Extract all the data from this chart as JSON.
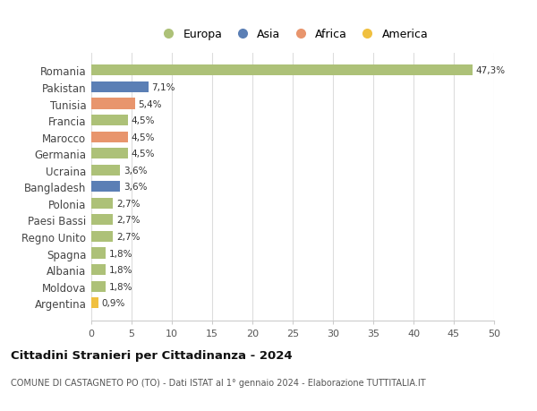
{
  "categories": [
    "Romania",
    "Pakistan",
    "Tunisia",
    "Francia",
    "Marocco",
    "Germania",
    "Ucraina",
    "Bangladesh",
    "Polonia",
    "Paesi Bassi",
    "Regno Unito",
    "Spagna",
    "Albania",
    "Moldova",
    "Argentina"
  ],
  "values": [
    47.3,
    7.1,
    5.4,
    4.5,
    4.5,
    4.5,
    3.6,
    3.6,
    2.7,
    2.7,
    2.7,
    1.8,
    1.8,
    1.8,
    0.9
  ],
  "labels": [
    "47,3%",
    "7,1%",
    "5,4%",
    "4,5%",
    "4,5%",
    "4,5%",
    "3,6%",
    "3,6%",
    "2,7%",
    "2,7%",
    "2,7%",
    "1,8%",
    "1,8%",
    "1,8%",
    "0,9%"
  ],
  "colors": [
    "#adc178",
    "#5b7fb5",
    "#e8956d",
    "#adc178",
    "#e8956d",
    "#adc178",
    "#adc178",
    "#5b7fb5",
    "#adc178",
    "#adc178",
    "#adc178",
    "#adc178",
    "#adc178",
    "#adc178",
    "#f0c040"
  ],
  "legend_labels": [
    "Europa",
    "Asia",
    "Africa",
    "America"
  ],
  "legend_colors": [
    "#adc178",
    "#5b7fb5",
    "#e8956d",
    "#f0c040"
  ],
  "title": "Cittadini Stranieri per Cittadinanza - 2024",
  "subtitle": "COMUNE DI CASTAGNETO PO (TO) - Dati ISTAT al 1° gennaio 2024 - Elaborazione TUTTITALIA.IT",
  "xlim": [
    0,
    50
  ],
  "xticks": [
    0,
    5,
    10,
    15,
    20,
    25,
    30,
    35,
    40,
    45,
    50
  ],
  "background_color": "#ffffff",
  "grid_color": "#dddddd"
}
